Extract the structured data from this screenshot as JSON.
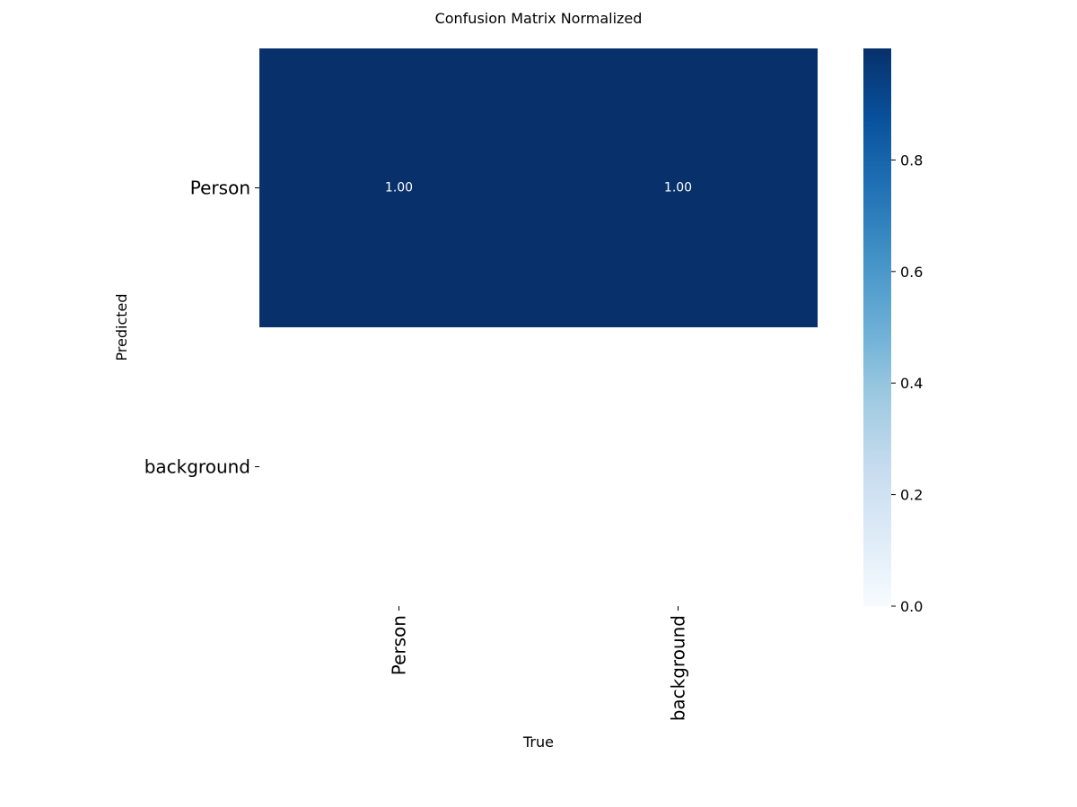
{
  "chart_data": {
    "type": "heatmap",
    "title": "Confusion Matrix Normalized",
    "xlabel": "True",
    "ylabel": "Predicted",
    "x_categories": [
      "Person",
      "background"
    ],
    "y_categories": [
      "Person",
      "background"
    ],
    "values": [
      [
        1.0,
        1.0
      ],
      [
        null,
        null
      ]
    ],
    "cell_labels": [
      [
        "1.00",
        "1.00"
      ],
      [
        "",
        ""
      ]
    ],
    "colormap": "Blues",
    "colors": {
      "low": "#f7fbff",
      "high": "#08306b",
      "cell_text": "#ffffff",
      "axis_text": "#000000"
    },
    "colorbar": {
      "range": [
        0.0,
        1.0
      ],
      "ticks": [
        0.0,
        0.2,
        0.4,
        0.6,
        0.8
      ],
      "tick_labels": [
        "0.0",
        "0.2",
        "0.4",
        "0.6",
        "0.8"
      ]
    }
  }
}
